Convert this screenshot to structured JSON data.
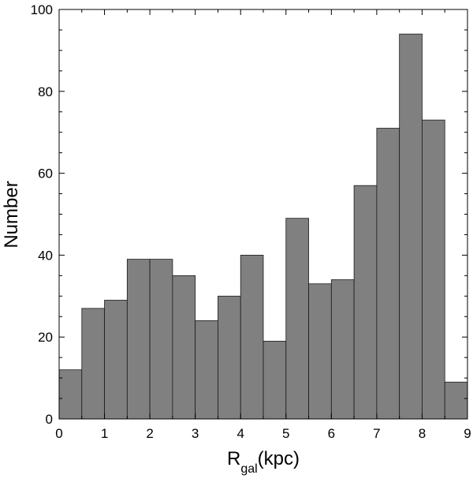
{
  "chart_data": {
    "type": "bar",
    "bin_edges": [
      0,
      0.5,
      1,
      1.5,
      2,
      2.5,
      3,
      3.5,
      4,
      4.5,
      5,
      5.5,
      6,
      6.5,
      7,
      7.5,
      8,
      8.5,
      9
    ],
    "values": [
      12,
      27,
      29,
      39,
      39,
      35,
      24,
      30,
      40,
      19,
      49,
      33,
      34,
      57,
      71,
      94,
      73,
      9
    ],
    "xlabel_main": "R",
    "xlabel_sub": "gal",
    "xlabel_unit": "(kpc)",
    "ylabel": "Number",
    "xlim": [
      0,
      9
    ],
    "ylim": [
      0,
      100
    ],
    "xticks": [
      "0",
      "1",
      "2",
      "3",
      "4",
      "5",
      "6",
      "7",
      "8",
      "9"
    ],
    "yticks": [
      "0",
      "20",
      "40",
      "60",
      "80",
      "100"
    ],
    "grid": false,
    "bar_color": "#808080",
    "edge_color": "#1a1a1a"
  }
}
